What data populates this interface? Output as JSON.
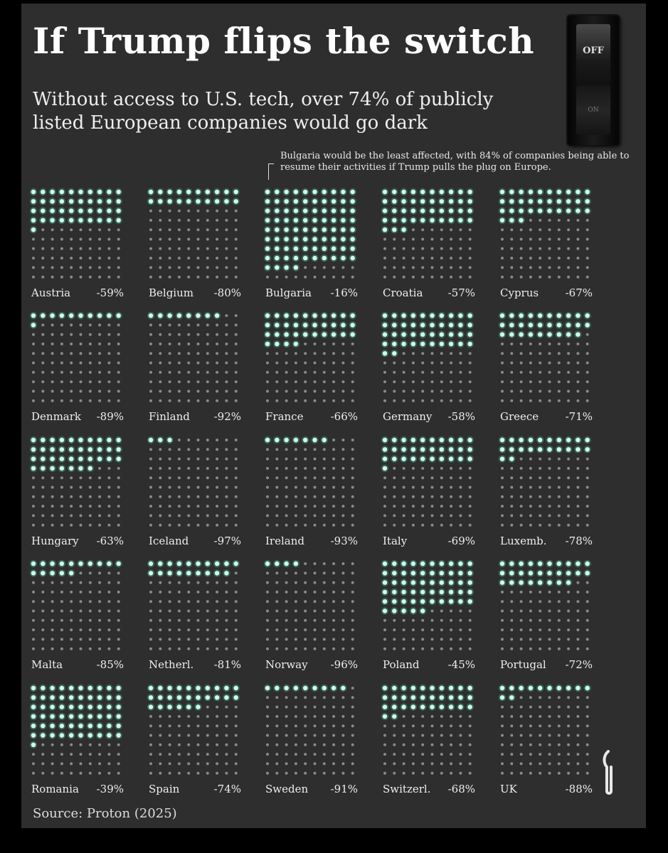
{
  "title": "If Trump flips the switch",
  "subtitle": "Without access to U.S. tech, over 74% of publicly listed European companies would go dark",
  "annotation": "Bulgaria would be the least affected, with 84% of companies being able to resume their activities if Trump pulls the plug on Europe.",
  "switch": {
    "off_label": "OFF",
    "on_label": "ON"
  },
  "source": "Source: Proton (2025)",
  "colors": {
    "background": "#2e2e2e",
    "lit_dot": "#c8ffee",
    "dim_dot": "#8a8a8a",
    "text": "#eeeeee"
  },
  "chart_data": {
    "type": "dot-grid",
    "grid": {
      "rows": 10,
      "cols": 10,
      "total": 100
    },
    "countries": [
      {
        "name": "Austria",
        "label": "-59%",
        "value": -59
      },
      {
        "name": "Belgium",
        "label": "-80%",
        "value": -80
      },
      {
        "name": "Bulgaria",
        "label": "-16%",
        "value": -16
      },
      {
        "name": "Croatia",
        "label": "-57%",
        "value": -57
      },
      {
        "name": "Cyprus",
        "label": "-67%",
        "value": -67
      },
      {
        "name": "Denmark",
        "label": "-89%",
        "value": -89
      },
      {
        "name": "Finland",
        "label": "-92%",
        "value": -92
      },
      {
        "name": "France",
        "label": "-66%",
        "value": -66
      },
      {
        "name": "Germany",
        "label": "-58%",
        "value": -58
      },
      {
        "name": "Greece",
        "label": "-71%",
        "value": -71
      },
      {
        "name": "Hungary",
        "label": "-63%",
        "value": -63
      },
      {
        "name": "Iceland",
        "label": "-97%",
        "value": -97
      },
      {
        "name": "Ireland",
        "label": "-93%",
        "value": -93
      },
      {
        "name": "Italy",
        "label": "-69%",
        "value": -69
      },
      {
        "name": "Luxemb.",
        "label": "-78%",
        "value": -78
      },
      {
        "name": "Malta",
        "label": "-85%",
        "value": -85
      },
      {
        "name": "Netherl.",
        "label": "-81%",
        "value": -81
      },
      {
        "name": "Norway",
        "label": "-96%",
        "value": -96
      },
      {
        "name": "Poland",
        "label": "-45%",
        "value": -45
      },
      {
        "name": "Portugal",
        "label": "-72%",
        "value": -72
      },
      {
        "name": "Romania",
        "label": "-39%",
        "value": -39
      },
      {
        "name": "Spain",
        "label": "-74%",
        "value": -74
      },
      {
        "name": "Sweden",
        "label": "-91%",
        "value": -91
      },
      {
        "name": "Switzerl.",
        "label": "-68%",
        "value": -68
      },
      {
        "name": "UK",
        "label": "-88%",
        "value": -88
      }
    ]
  }
}
